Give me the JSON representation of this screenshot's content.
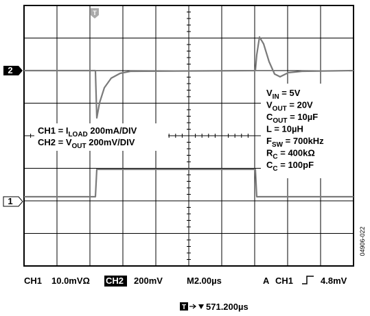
{
  "channel_markers": [
    "2",
    "1"
  ],
  "trigger_marker": "T",
  "legend": [
    {
      "main": "CH1 = I",
      "sub": "LOAD",
      "tail": " 200mA/DIV"
    },
    {
      "main": "CH2 = V",
      "sub": "OUT",
      "tail": " 200mV/DIV"
    }
  ],
  "conditions": [
    {
      "main": "V",
      "sub": "IN",
      "tail": " = 5V"
    },
    {
      "main": "V",
      "sub": "OUT",
      "tail": " = 20V"
    },
    {
      "main": "C",
      "sub": "OUT",
      "tail": " = 10µF"
    },
    {
      "main": "L = 10µH"
    },
    {
      "main": "F",
      "sub": "SW",
      "tail": " = 700kHz"
    },
    {
      "main": "R",
      "sub": "C",
      "tail": " = 400kΩ"
    },
    {
      "main": "C",
      "sub": "C",
      "tail": " = 100pF"
    }
  ],
  "status": {
    "ch1": "CH1",
    "ch1_scale": "10.0mVΩ",
    "ch2": "CH2",
    "ch2_scale": "200mV",
    "timebase": "M2.00µs",
    "trigger_mode": "A",
    "trigger_source": "CH1",
    "trigger_level": "4.8mV"
  },
  "trigger_position": {
    "marker": "T",
    "time": "571.200µs"
  },
  "figure_id": "04906-022"
}
